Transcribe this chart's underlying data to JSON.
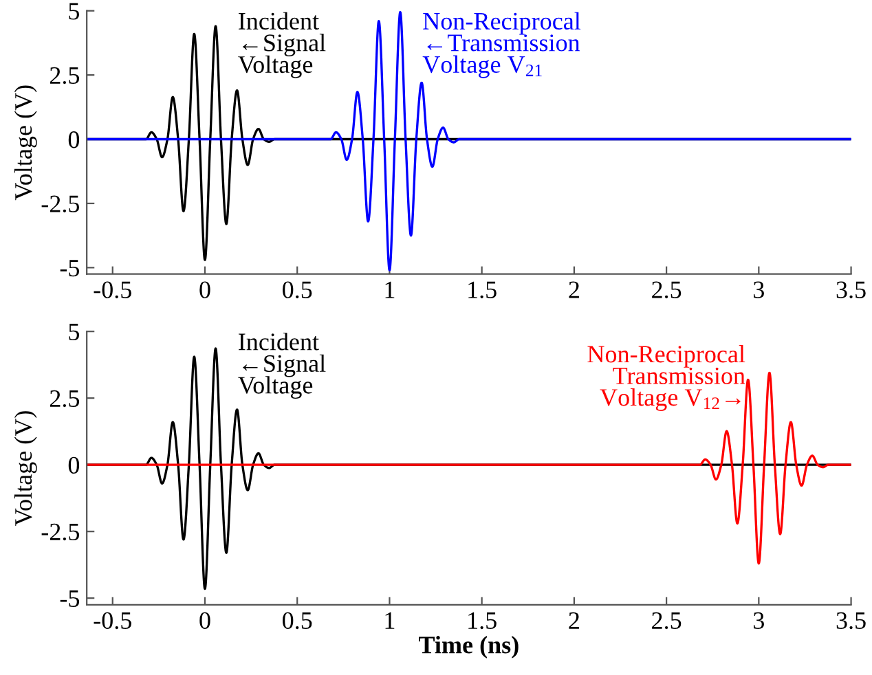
{
  "chart_data": [
    {
      "type": "line",
      "ylabel": "Voltage (V)",
      "xlim": [
        -0.64,
        3.5
      ],
      "ylim": [
        -5.25,
        5
      ],
      "xticks": [
        -0.5,
        0,
        0.5,
        1,
        1.5,
        2,
        2.5,
        3,
        3.5
      ],
      "yticks": [
        -5,
        -2.5,
        0,
        2.5,
        5
      ],
      "grid": false,
      "legend": false,
      "series": [
        {
          "name": "Incident\n←Signal\nVoltage",
          "color": "#000000",
          "x": [
            -0.64,
            -0.35,
            -0.319,
            -0.29,
            -0.261,
            -0.232,
            -0.203,
            -0.174,
            -0.145,
            -0.116,
            -0.087,
            -0.058,
            -0.029,
            0,
            0.029,
            0.058,
            0.087,
            0.116,
            0.145,
            0.174,
            0.203,
            0.232,
            0.261,
            0.29,
            0.319,
            0.348,
            0.377,
            0.45,
            3.5
          ],
          "values": [
            0,
            0,
            0,
            0.27,
            0,
            -0.7,
            0,
            1.64,
            0,
            -2.8,
            0,
            4.1,
            0,
            -4.7,
            0,
            4.4,
            0,
            -3.3,
            0,
            1.9,
            0,
            -1.0,
            0,
            0.4,
            0,
            -0.1,
            0,
            0,
            0
          ]
        },
        {
          "name": "Non-Reciprocal\n←Transmission\nVoltage V$_{21}$",
          "color": "#0000ff",
          "x": [
            -0.64,
            0.6,
            0.681,
            0.71,
            0.739,
            0.768,
            0.797,
            0.826,
            0.855,
            0.884,
            0.913,
            0.942,
            0.971,
            1.0,
            1.029,
            1.058,
            1.087,
            1.116,
            1.145,
            1.174,
            1.203,
            1.232,
            1.261,
            1.29,
            1.319,
            1.348,
            1.377,
            1.45,
            3.5
          ],
          "values": [
            0,
            0,
            0,
            0.27,
            0,
            -0.8,
            0,
            1.84,
            0,
            -3.2,
            0,
            4.6,
            0,
            -5.1,
            0,
            4.95,
            0,
            -3.75,
            0,
            2.2,
            0,
            -1.07,
            0,
            0.45,
            0,
            -0.12,
            0,
            0,
            0
          ]
        }
      ]
    },
    {
      "type": "line",
      "xlabel": "Time (ns)",
      "ylabel": "Voltage (V)",
      "xlim": [
        -0.64,
        3.5
      ],
      "ylim": [
        -5.25,
        5
      ],
      "xticks": [
        -0.5,
        0,
        0.5,
        1,
        1.5,
        2,
        2.5,
        3,
        3.5
      ],
      "yticks": [
        -5,
        -2.5,
        0,
        2.5,
        5
      ],
      "grid": false,
      "legend": false,
      "series": [
        {
          "name": "Incident\n←Signal\nVoltage",
          "color": "#000000",
          "x": [
            -0.64,
            -0.35,
            -0.319,
            -0.29,
            -0.261,
            -0.232,
            -0.203,
            -0.174,
            -0.145,
            -0.116,
            -0.087,
            -0.058,
            -0.029,
            0,
            0.029,
            0.058,
            0.087,
            0.116,
            0.145,
            0.174,
            0.203,
            0.232,
            0.261,
            0.29,
            0.319,
            0.348,
            0.377,
            0.45,
            3.5
          ],
          "values": [
            0,
            0,
            0,
            0.26,
            0,
            -0.7,
            0,
            1.6,
            0,
            -2.8,
            0,
            4.05,
            0,
            -4.65,
            0,
            4.36,
            0,
            -3.3,
            0,
            2.07,
            0,
            -0.95,
            0,
            0.43,
            0,
            -0.12,
            0,
            0,
            0
          ]
        },
        {
          "name": "Non-Reciprocal\nTransmission\nVoltage V$_{12}$→",
          "color": "#ff0000",
          "x": [
            -0.64,
            2.6,
            2.681,
            2.71,
            2.739,
            2.768,
            2.797,
            2.826,
            2.855,
            2.884,
            2.913,
            2.942,
            2.971,
            3.0,
            3.029,
            3.058,
            3.087,
            3.116,
            3.145,
            3.174,
            3.203,
            3.232,
            3.261,
            3.29,
            3.319,
            3.348,
            3.377,
            3.45,
            3.5
          ],
          "values": [
            0,
            0,
            0,
            0.2,
            0,
            -0.55,
            0,
            1.26,
            0,
            -2.2,
            0,
            3.19,
            0,
            -3.7,
            0,
            3.45,
            0,
            -2.6,
            0,
            1.6,
            0,
            -0.78,
            0,
            0.34,
            0,
            -0.09,
            0,
            0,
            0
          ]
        }
      ]
    }
  ]
}
